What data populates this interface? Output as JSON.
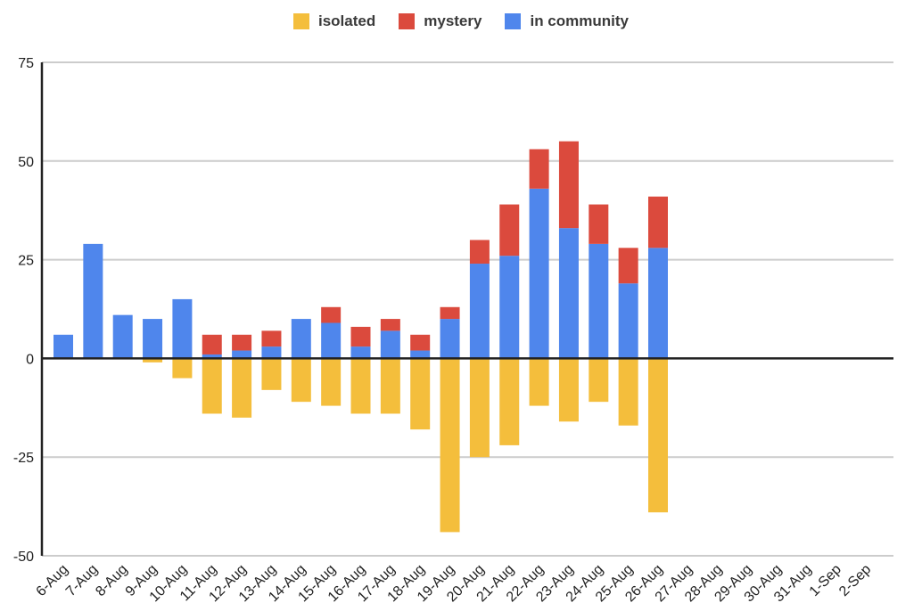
{
  "chart_data": {
    "type": "bar",
    "stacked": true,
    "title": "",
    "xlabel": "",
    "ylabel": "",
    "ylim": [
      -50,
      75
    ],
    "yticks": [
      75,
      50,
      25,
      0,
      -25,
      -50
    ],
    "grid": true,
    "legend_position": "top-center",
    "categories": [
      "6-Aug",
      "7-Aug",
      "8-Aug",
      "9-Aug",
      "10-Aug",
      "11-Aug",
      "12-Aug",
      "13-Aug",
      "14-Aug",
      "15-Aug",
      "16-Aug",
      "17-Aug",
      "18-Aug",
      "19-Aug",
      "20-Aug",
      "21-Aug",
      "22-Aug",
      "23-Aug",
      "24-Aug",
      "25-Aug",
      "26-Aug",
      "27-Aug",
      "28-Aug",
      "29-Aug",
      "30-Aug",
      "31-Aug",
      "1-Sep",
      "2-Sep"
    ],
    "series": [
      {
        "name": "isolated",
        "color": "#F4BE3C",
        "values": [
          0,
          0,
          0,
          -1,
          -5,
          -14,
          -15,
          -8,
          -11,
          -12,
          -14,
          -14,
          -18,
          -44,
          -25,
          -22,
          -12,
          -16,
          -11,
          -17,
          -39,
          0,
          0,
          0,
          0,
          0,
          0,
          0
        ]
      },
      {
        "name": "mystery",
        "color": "#DB4A3D",
        "values": [
          0,
          0,
          0,
          0,
          0,
          5,
          4,
          4,
          0,
          4,
          5,
          3,
          4,
          3,
          6,
          13,
          10,
          22,
          10,
          9,
          13,
          0,
          0,
          0,
          0,
          0,
          0,
          0
        ]
      },
      {
        "name": "in community",
        "color": "#4F86EC",
        "values": [
          6,
          29,
          11,
          10,
          15,
          1,
          2,
          3,
          10,
          9,
          3,
          7,
          2,
          10,
          24,
          26,
          43,
          33,
          29,
          19,
          28,
          0,
          0,
          0,
          0,
          0,
          0,
          0
        ]
      }
    ]
  }
}
